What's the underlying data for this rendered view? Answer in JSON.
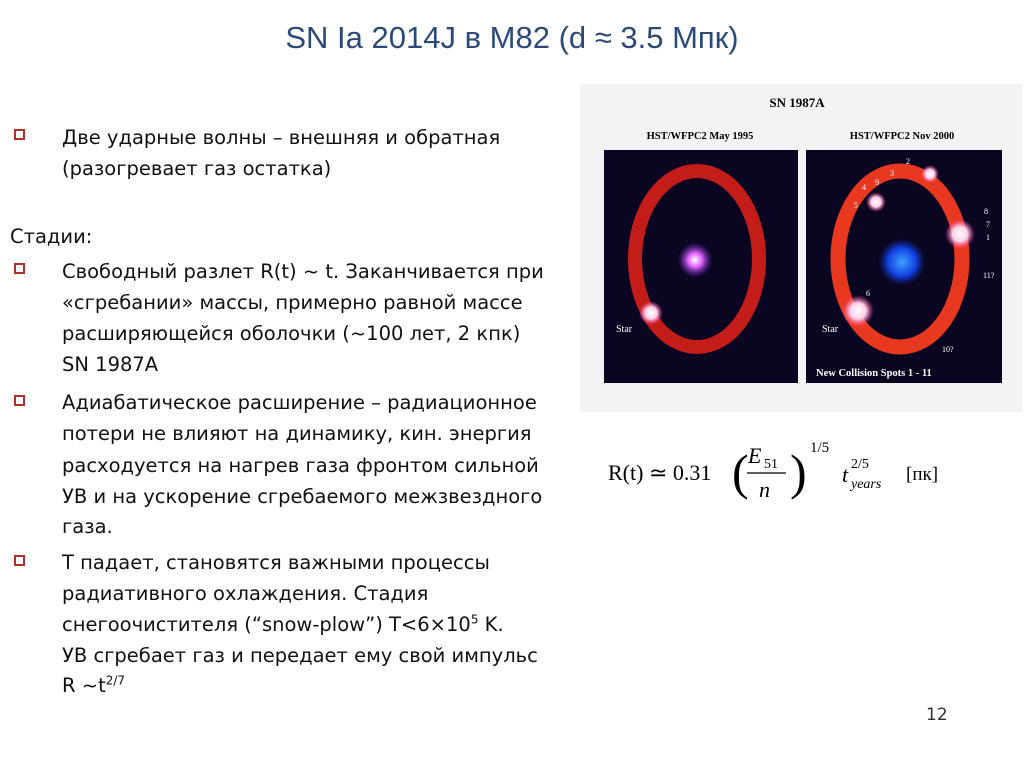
{
  "title": "SN Ia  2014J в M82 (d ≈ 3.5 Мпк)",
  "intro": [
    "Две ударные волны – внешняя и обратная",
    "(разогревает газ остатка)"
  ],
  "stages_label": "Стадии:",
  "stages": [
    [
      "Свободный разлет R(t) ~ t. Заканчивается при",
      "«сгребании» массы, примерно равной массе",
      "расширяющейся оболочки (~100 лет, 2 кпк)",
      "SN 1987A"
    ],
    [
      "Адиабатическое расширение – радиационное",
      "потери не влияют на динамику, кин. энергия",
      "расходуется на нагрев газа фронтом сильной",
      "УВ и на ускорение сгребаемого межзвездного",
      "газа."
    ],
    [
      "Т падает, становятся важными процессы",
      "радиативного охлаждения. Стадия",
      [
        "снегоочистителя (“snow-plow”) T<6×10",
        "5",
        " K."
      ],
      "УВ сгребает газ и передает ему свой импульс",
      [
        "R ~t",
        "2/7"
      ]
    ]
  ],
  "figure": {
    "title": "SN 1987A",
    "left_caption": "HST/WFPC2 May 1995",
    "right_caption": "HST/WFPC2 Nov 2000",
    "left_star": "Star",
    "right_star": "Star",
    "footer": "New Collision Spots 1 - 11",
    "spots": [
      "2",
      "3",
      "4",
      "9",
      "5",
      "8",
      "7",
      "1",
      "11?",
      "6",
      "10?"
    ]
  },
  "formula": {
    "lhs": "R(t) ≃ 0.31",
    "numerator": "E",
    "numerator_sub": "51",
    "denominator": "n",
    "power": "1/5",
    "t": "t",
    "t_power": "2/5",
    "t_sub": "years",
    "unit": "[пк]"
  },
  "page_number": "12"
}
